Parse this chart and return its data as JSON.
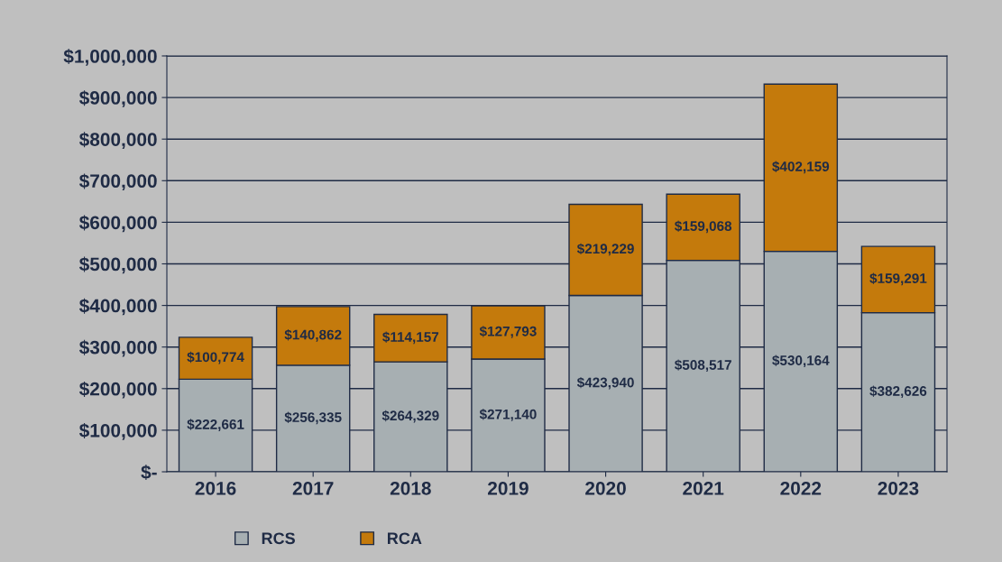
{
  "chart_data": {
    "type": "bar",
    "stacked": true,
    "categories": [
      "2016",
      "2017",
      "2018",
      "2019",
      "2020",
      "2021",
      "2022",
      "2023"
    ],
    "series": [
      {
        "name": "RCS",
        "color": "#a7afb2",
        "values": [
          222661,
          256335,
          264329,
          271140,
          423940,
          508517,
          530164,
          382626
        ],
        "value_labels": [
          "$222,661",
          "$256,335",
          "$264,329",
          "$271,140",
          "$423,940",
          "$508,517",
          "$530,164",
          "$382,626"
        ]
      },
      {
        "name": "RCA",
        "color": "#c47a0c",
        "values": [
          100774,
          140862,
          114157,
          127793,
          219229,
          159068,
          402159,
          159291
        ],
        "value_labels": [
          "$100,774",
          "$140,862",
          "$114,157",
          "$127,793",
          "$219,229",
          "$159,068",
          "$402,159",
          "$159,291"
        ]
      }
    ],
    "ylim": [
      0,
      1000000
    ],
    "yticks": [
      {
        "value": 0,
        "label": "$-"
      },
      {
        "value": 100000,
        "label": "$100,000"
      },
      {
        "value": 200000,
        "label": "$200,000"
      },
      {
        "value": 300000,
        "label": "$300,000"
      },
      {
        "value": 400000,
        "label": "$400,000"
      },
      {
        "value": 500000,
        "label": "$500,000"
      },
      {
        "value": 600000,
        "label": "$600,000"
      },
      {
        "value": 700000,
        "label": "$700,000"
      },
      {
        "value": 800000,
        "label": "$800,000"
      },
      {
        "value": 900000,
        "label": "$900,000"
      },
      {
        "value": 1000000,
        "label": "$1,000,000"
      }
    ],
    "grid": "y",
    "legend": "bottom left"
  }
}
